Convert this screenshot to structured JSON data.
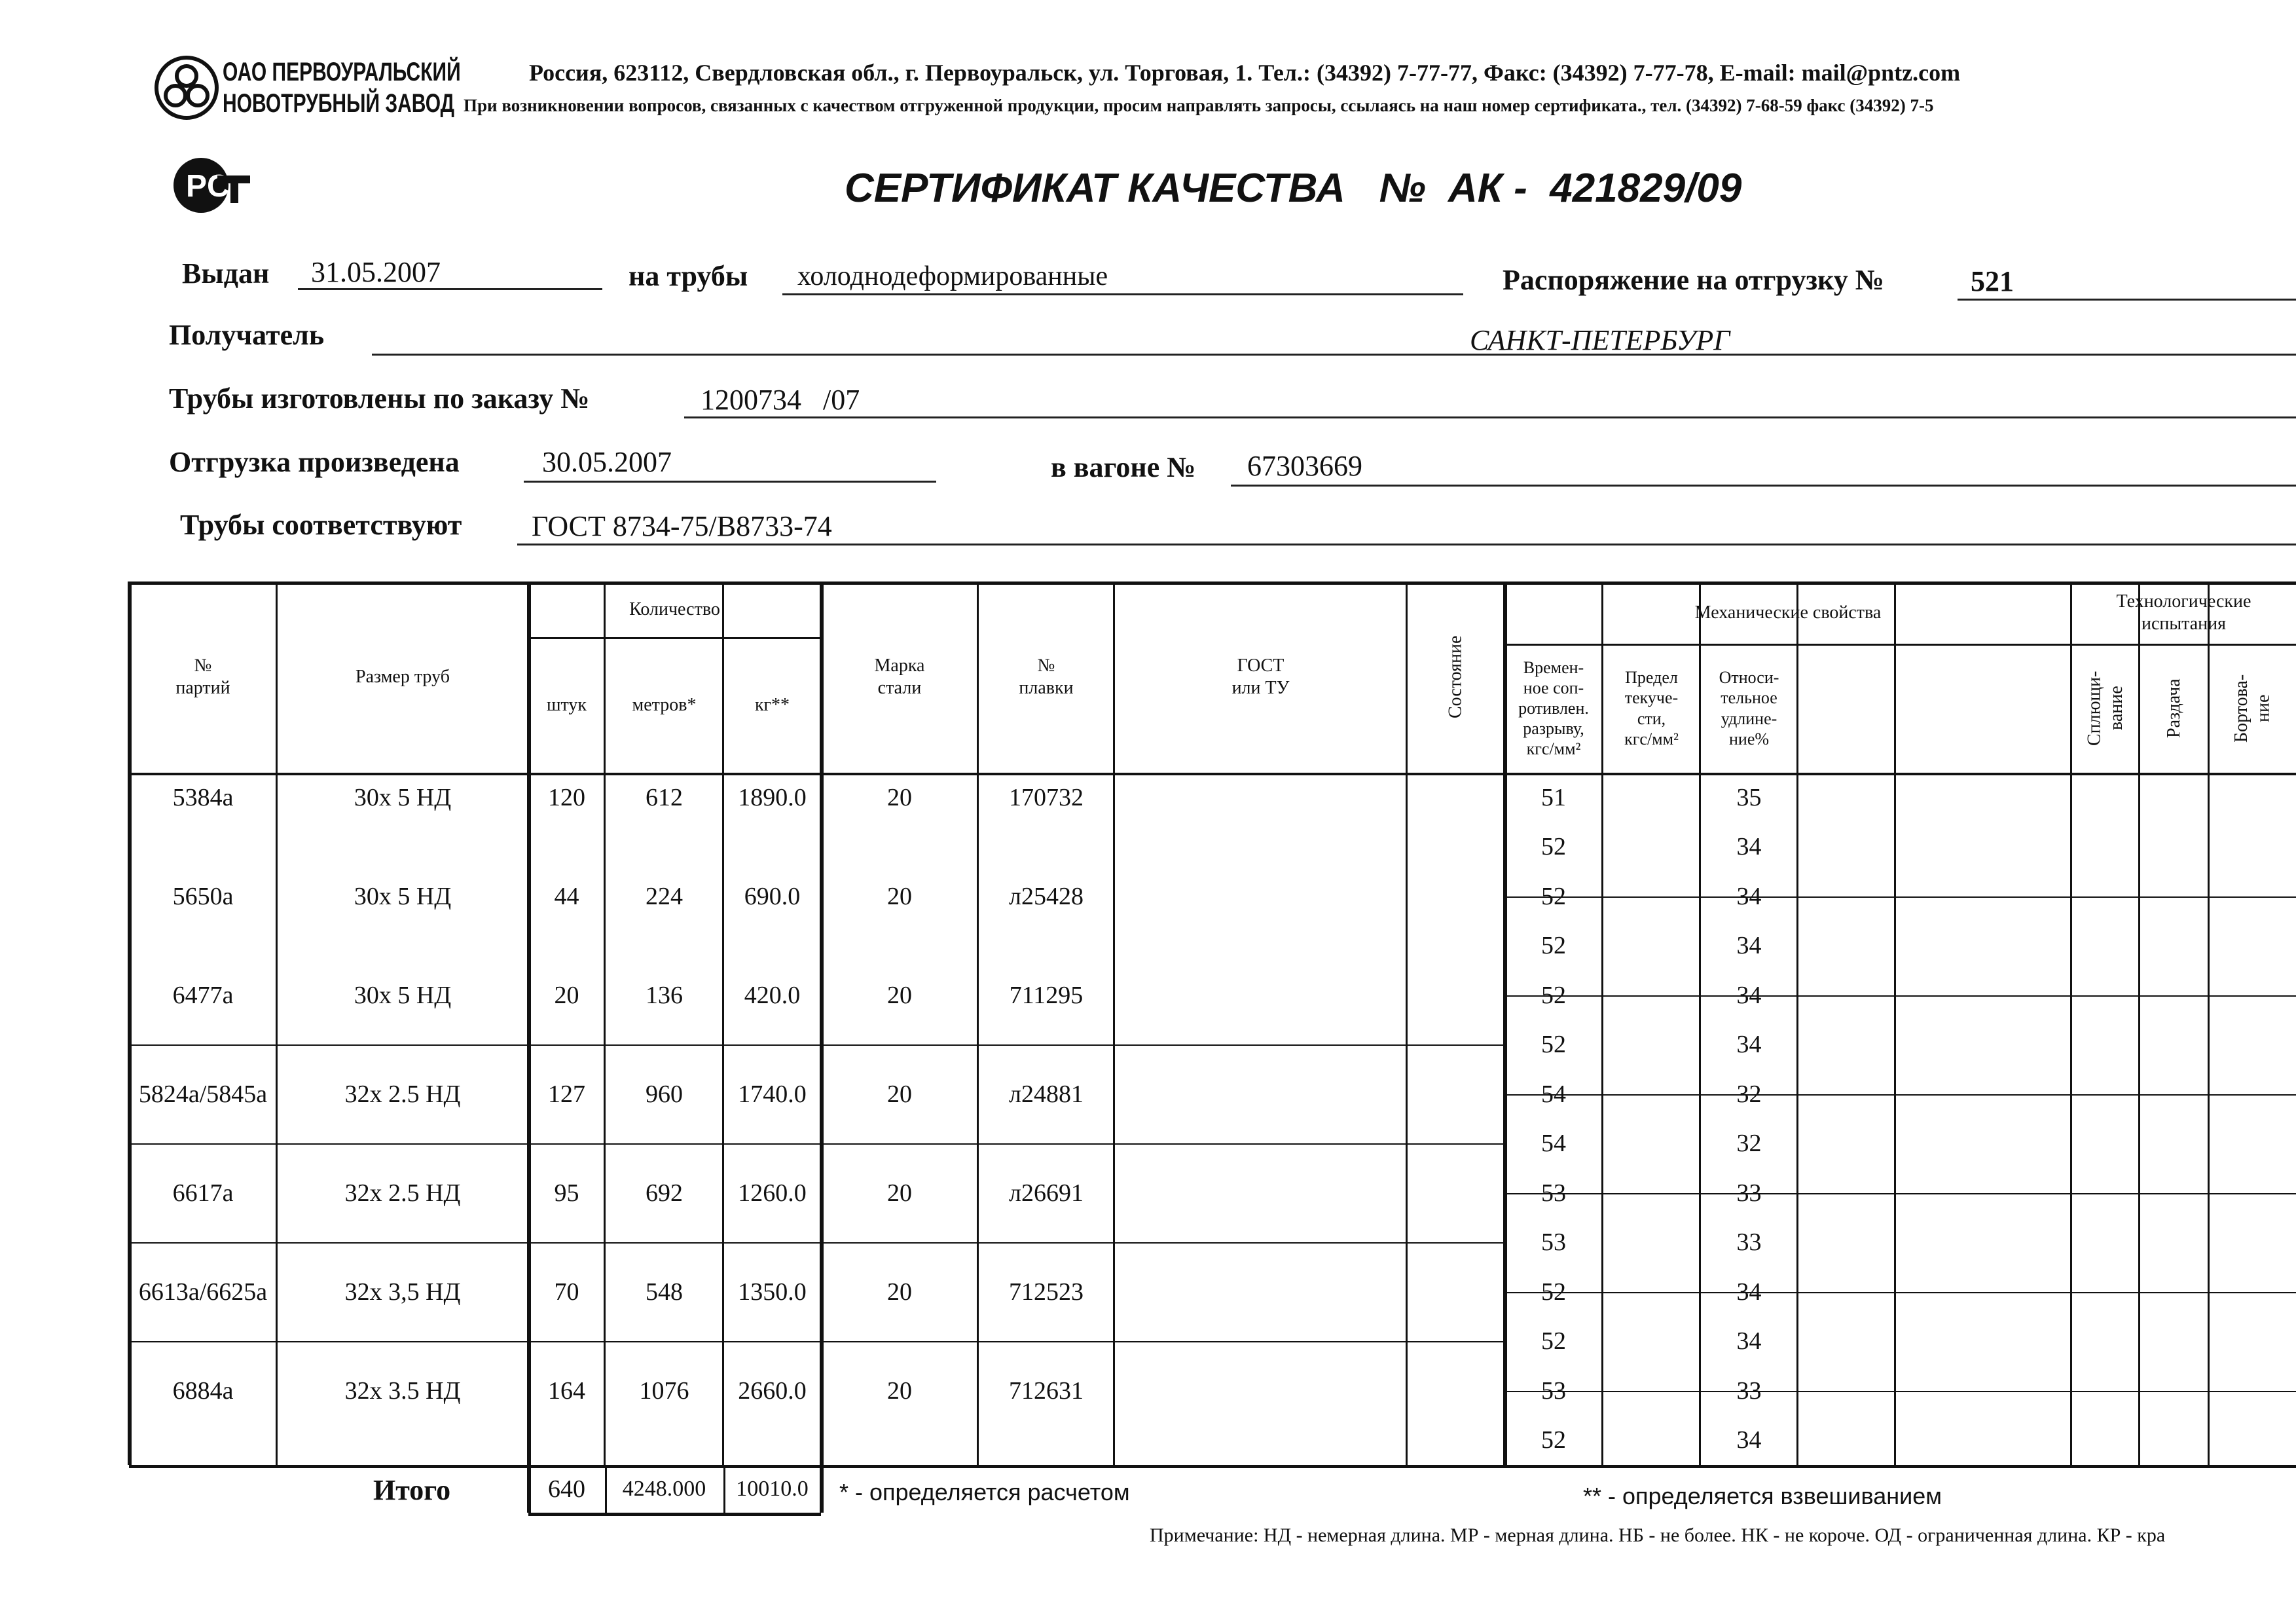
{
  "company": {
    "name_line1": "ОАО ПЕРВОУРАЛЬСКИЙ",
    "name_line2": "НОВОТРУБНЫЙ ЗАВОД",
    "address": "Россия, 623112, Свердловская обл., г. Первоуральск, ул. Торговая, 1. Тел.: (34392) 7-77-77, Факс: (34392) 7-77-78,  E-mail: mail@pntz.com",
    "notice": "При возникновении вопросов, связанных с качеством отгруженной продукции, просим направлять запросы, ссылаясь на наш номер сертификата., тел. (34392) 7-68-59 факс (34392) 7-5"
  },
  "title": "СЕРТИФИКАТ КАЧЕСТВА   №  АК -  421829/09",
  "fields": {
    "issued_label": "Выдан",
    "issued_value": "31.05.2007",
    "pipes_label": "на трубы",
    "pipes_value": "холоднодеформированные",
    "order_label": "Распоряжение на отгрузку №",
    "order_value": "521",
    "recipient_label": "Получатель",
    "recipient_value": "САНКТ-ПЕТЕРБУРГ",
    "made_label": "Трубы изготовлены по заказу №",
    "made_value": "1200734   /07",
    "shipped_label": "Отгрузка произведена",
    "shipped_value": "30.05.2007",
    "wagon_label": "в вагоне №",
    "wagon_value": "67303669",
    "conform_label": "Трубы соответствуют",
    "conform_value": "ГОСТ 8734-75/В8733-74"
  },
  "table": {
    "headers": {
      "party": "№\nпартий",
      "size": "Размер труб",
      "quantity": "Количество",
      "pcs": "штук",
      "meters": "метров*",
      "kg": "кг**",
      "steel": "Марка\nстали",
      "melt": "№\nплавки",
      "gost": "ГОСТ\nили ТУ",
      "state": "Состояние",
      "mech": "Механические свойства",
      "tensile": "Времен-\nное соп-\nротивлен.\nразрыву,\nкгс/мм²",
      "yield": "Предел\nтекуче-\nсти,\nкгс/мм²",
      "elong": "Относи-\nтельное\nудлине-\nние%",
      "tech": "Технологические\nиспытания",
      "flatten": "Сплющи-\nвание",
      "expand": "Раздача",
      "flange": "Бортова-\nние"
    },
    "rows": [
      {
        "party": "5384а",
        "size": "30х 5 НД",
        "pcs": "120",
        "meters": "612",
        "kg": "1890.0",
        "steel": "20",
        "melt": "170732"
      },
      {
        "party": "5650а",
        "size": "30х 5 НД",
        "pcs": "44",
        "meters": "224",
        "kg": "690.0",
        "steel": "20",
        "melt": "л25428"
      },
      {
        "party": "6477а",
        "size": "30х 5 НД",
        "pcs": "20",
        "meters": "136",
        "kg": "420.0",
        "steel": "20",
        "melt": "711295"
      },
      {
        "party": "5824а/5845а",
        "size": "32х 2.5 НД",
        "pcs": "127",
        "meters": "960",
        "kg": "1740.0",
        "steel": "20",
        "melt": "л24881"
      },
      {
        "party": "6617а",
        "size": "32х 2.5 НД",
        "pcs": "95",
        "meters": "692",
        "kg": "1260.0",
        "steel": "20",
        "melt": "л26691"
      },
      {
        "party": "6613а/6625а",
        "size": "32х 3,5 НД",
        "pcs": "70",
        "meters": "548",
        "kg": "1350.0",
        "steel": "20",
        "melt": "712523"
      },
      {
        "party": "6884а",
        "size": "32х 3.5 НД",
        "pcs": "164",
        "meters": "1076",
        "kg": "2660.0",
        "steel": "20",
        "melt": "712631"
      }
    ],
    "mech": [
      [
        "51",
        "35"
      ],
      [
        "52",
        "34"
      ],
      [
        "52",
        "34"
      ],
      [
        "52",
        "34"
      ],
      [
        "52",
        "34"
      ],
      [
        "52",
        "34"
      ],
      [
        "54",
        "32"
      ],
      [
        "54",
        "32"
      ],
      [
        "53",
        "33"
      ],
      [
        "53",
        "33"
      ],
      [
        "52",
        "34"
      ],
      [
        "52",
        "34"
      ],
      [
        "53",
        "33"
      ],
      [
        "52",
        "34"
      ]
    ],
    "total_label": "Итого",
    "total_pcs": "640",
    "total_meters": "4248.000",
    "total_kg": "10010.0"
  },
  "footnotes": {
    "calc": "* - определяется расчетом",
    "weigh": "** - определяется взвешиванием",
    "note": "Примечание: НД - немерная длина. МР - мерная длина. НБ - не более. НК - не короче. ОД - ограниченная длина. КР - кра"
  }
}
